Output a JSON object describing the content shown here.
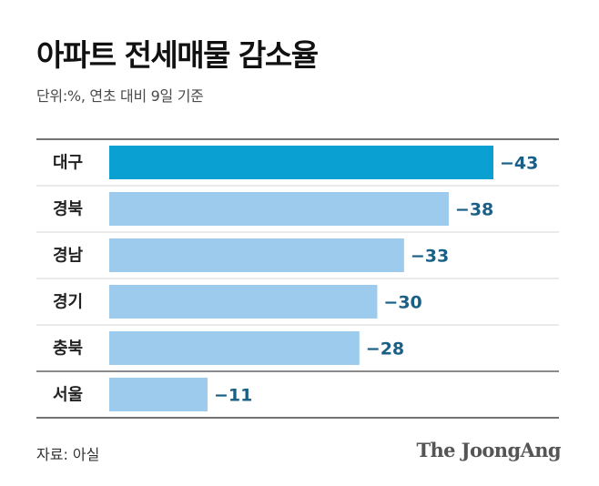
{
  "header": {
    "title": "아파트 전세매물 감소율",
    "subtitle": "단위:%, 연초 대비 9일 기준"
  },
  "footer": {
    "source": "자료: 아실",
    "logo": "The JoongAng"
  },
  "colors": {
    "highlight_bar": "#0aa0d2",
    "bar": "#9ccbee",
    "value_label": "#1a5f86",
    "category_label": "#222222",
    "rule": "#444444",
    "row_divider": "#d6d6d6"
  },
  "chart_data": {
    "type": "bar",
    "orientation": "horizontal",
    "categories": [
      "대구",
      "경북",
      "경남",
      "경기",
      "충북",
      "서울"
    ],
    "values": [
      -43,
      -38,
      -33,
      -30,
      -28,
      -11
    ],
    "value_labels": [
      "−43",
      "−38",
      "−33",
      "−30",
      "−28",
      "−11"
    ],
    "highlight_index": 0,
    "xlim": [
      0,
      43
    ],
    "grid": false,
    "legend": "none"
  }
}
